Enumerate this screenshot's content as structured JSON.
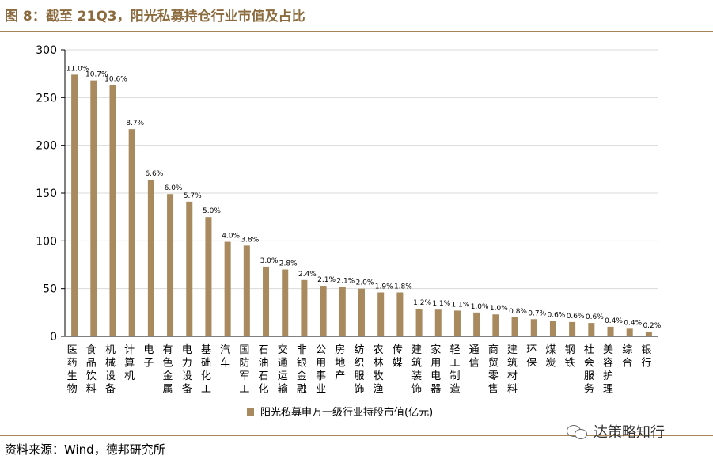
{
  "figure": {
    "title": "图 8：截至 21Q3，阳光私募持仓行业市值及占比",
    "source": "资料来源：Wind，德邦研究所",
    "watermark": "达策略知行"
  },
  "chart_data": {
    "type": "bar",
    "title": "",
    "xlabel": "",
    "ylabel": "",
    "ylim": [
      0,
      300
    ],
    "yticks": [
      0,
      50,
      100,
      150,
      200,
      250,
      300
    ],
    "grid": true,
    "legend_position": "bottom",
    "bar_color": "#a88a5e",
    "categories": [
      "医药生物",
      "食品饮料",
      "机械设备",
      "计算机",
      "电子",
      "有色金属",
      "电力设备",
      "基础化工",
      "汽车",
      "国防军工",
      "石油石化",
      "交通运输",
      "非银金融",
      "公用事业",
      "房地产",
      "纺织服饰",
      "农林牧渔",
      "传媒",
      "建筑装饰",
      "家用电器",
      "轻工制造",
      "通信",
      "商贸零售",
      "建筑材料",
      "环保",
      "煤炭",
      "钢铁",
      "社会服务",
      "美容护理",
      "综合",
      "银行"
    ],
    "series": [
      {
        "name": "阳光私募申万一级行业持股市值(亿元)",
        "values": [
          274,
          268,
          263,
          217,
          164,
          149,
          141,
          125,
          99,
          95,
          73,
          70,
          59,
          53,
          52,
          50,
          46,
          46,
          29,
          28,
          27,
          25,
          23,
          20,
          18,
          16,
          15,
          14,
          10,
          8,
          5
        ],
        "labels": [
          "11.0%",
          "10.7%",
          "10.6%",
          "8.7%",
          "6.6%",
          "6.0%",
          "5.7%",
          "5.0%",
          "4.0%",
          "3.8%",
          "3.0%",
          "2.8%",
          "2.4%",
          "2.1%",
          "2.1%",
          "2.0%",
          "1.9%",
          "1.8%",
          "1.2%",
          "1.1%",
          "1.1%",
          "1.0%",
          "1.0%",
          "0.8%",
          "0.7%",
          "0.6%",
          "0.6%",
          "0.6%",
          "0.4%",
          "0.4%",
          "0.2%"
        ]
      }
    ]
  }
}
